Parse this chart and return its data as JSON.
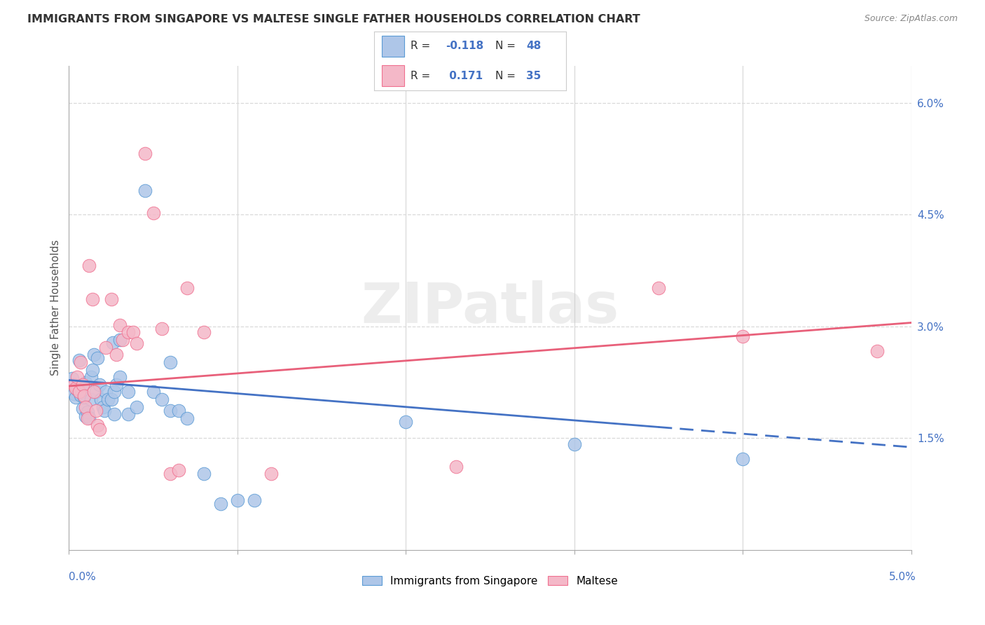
{
  "title": "IMMIGRANTS FROM SINGAPORE VS MALTESE SINGLE FATHER HOUSEHOLDS CORRELATION CHART",
  "source": "Source: ZipAtlas.com",
  "ylabel": "Single Father Households",
  "xlim": [
    0.0,
    5.0
  ],
  "ylim": [
    0.0,
    6.5
  ],
  "yticks": [
    1.5,
    3.0,
    4.5,
    6.0
  ],
  "ytick_labels": [
    "1.5%",
    "3.0%",
    "4.5%",
    "6.0%"
  ],
  "blue_color": "#aec6e8",
  "pink_color": "#f4b8c8",
  "blue_edge": "#5b9bd5",
  "pink_edge": "#f07090",
  "blue_line": "#4472c4",
  "pink_line": "#e8607a",
  "blue_scatter": [
    [
      0.02,
      2.3
    ],
    [
      0.03,
      2.1
    ],
    [
      0.04,
      2.05
    ],
    [
      0.05,
      2.15
    ],
    [
      0.06,
      2.55
    ],
    [
      0.07,
      2.08
    ],
    [
      0.08,
      1.9
    ],
    [
      0.09,
      2.05
    ],
    [
      0.1,
      2.25
    ],
    [
      0.1,
      1.8
    ],
    [
      0.11,
      1.85
    ],
    [
      0.12,
      1.78
    ],
    [
      0.13,
      2.32
    ],
    [
      0.13,
      2.02
    ],
    [
      0.14,
      2.42
    ],
    [
      0.15,
      2.62
    ],
    [
      0.16,
      2.12
    ],
    [
      0.17,
      2.58
    ],
    [
      0.18,
      2.22
    ],
    [
      0.19,
      2.02
    ],
    [
      0.2,
      1.92
    ],
    [
      0.21,
      1.87
    ],
    [
      0.22,
      2.12
    ],
    [
      0.23,
      2.02
    ],
    [
      0.25,
      2.02
    ],
    [
      0.26,
      2.78
    ],
    [
      0.27,
      1.82
    ],
    [
      0.27,
      2.12
    ],
    [
      0.28,
      2.22
    ],
    [
      0.3,
      2.82
    ],
    [
      0.3,
      2.32
    ],
    [
      0.35,
      2.12
    ],
    [
      0.35,
      1.82
    ],
    [
      0.4,
      1.92
    ],
    [
      0.45,
      4.82
    ],
    [
      0.5,
      2.12
    ],
    [
      0.55,
      2.02
    ],
    [
      0.6,
      1.87
    ],
    [
      0.6,
      2.52
    ],
    [
      0.65,
      1.87
    ],
    [
      0.7,
      1.77
    ],
    [
      0.8,
      1.02
    ],
    [
      0.9,
      0.62
    ],
    [
      1.0,
      0.67
    ],
    [
      1.1,
      0.67
    ],
    [
      2.0,
      1.72
    ],
    [
      3.0,
      1.42
    ],
    [
      4.0,
      1.22
    ]
  ],
  "pink_scatter": [
    [
      0.03,
      2.22
    ],
    [
      0.04,
      2.17
    ],
    [
      0.05,
      2.32
    ],
    [
      0.06,
      2.12
    ],
    [
      0.07,
      2.52
    ],
    [
      0.08,
      2.22
    ],
    [
      0.09,
      2.07
    ],
    [
      0.1,
      1.92
    ],
    [
      0.11,
      1.77
    ],
    [
      0.12,
      3.82
    ],
    [
      0.14,
      3.37
    ],
    [
      0.15,
      2.12
    ],
    [
      0.16,
      1.87
    ],
    [
      0.17,
      1.67
    ],
    [
      0.18,
      1.62
    ],
    [
      0.22,
      2.72
    ],
    [
      0.25,
      3.37
    ],
    [
      0.28,
      2.62
    ],
    [
      0.3,
      3.02
    ],
    [
      0.32,
      2.82
    ],
    [
      0.35,
      2.92
    ],
    [
      0.38,
      2.92
    ],
    [
      0.4,
      2.77
    ],
    [
      0.45,
      5.32
    ],
    [
      0.5,
      4.52
    ],
    [
      0.55,
      2.97
    ],
    [
      0.6,
      1.02
    ],
    [
      0.65,
      1.07
    ],
    [
      0.7,
      3.52
    ],
    [
      0.8,
      2.92
    ],
    [
      1.2,
      1.02
    ],
    [
      2.3,
      1.12
    ],
    [
      3.5,
      3.52
    ],
    [
      4.0,
      2.87
    ],
    [
      4.8,
      2.67
    ]
  ],
  "blue_trend_x": [
    0.0,
    5.0
  ],
  "blue_trend_y": [
    2.28,
    1.38
  ],
  "pink_trend_x": [
    0.0,
    5.0
  ],
  "pink_trend_y": [
    2.2,
    3.05
  ],
  "watermark": "ZIPatlas",
  "bg_color": "#ffffff",
  "grid_color": "#d9d9d9"
}
